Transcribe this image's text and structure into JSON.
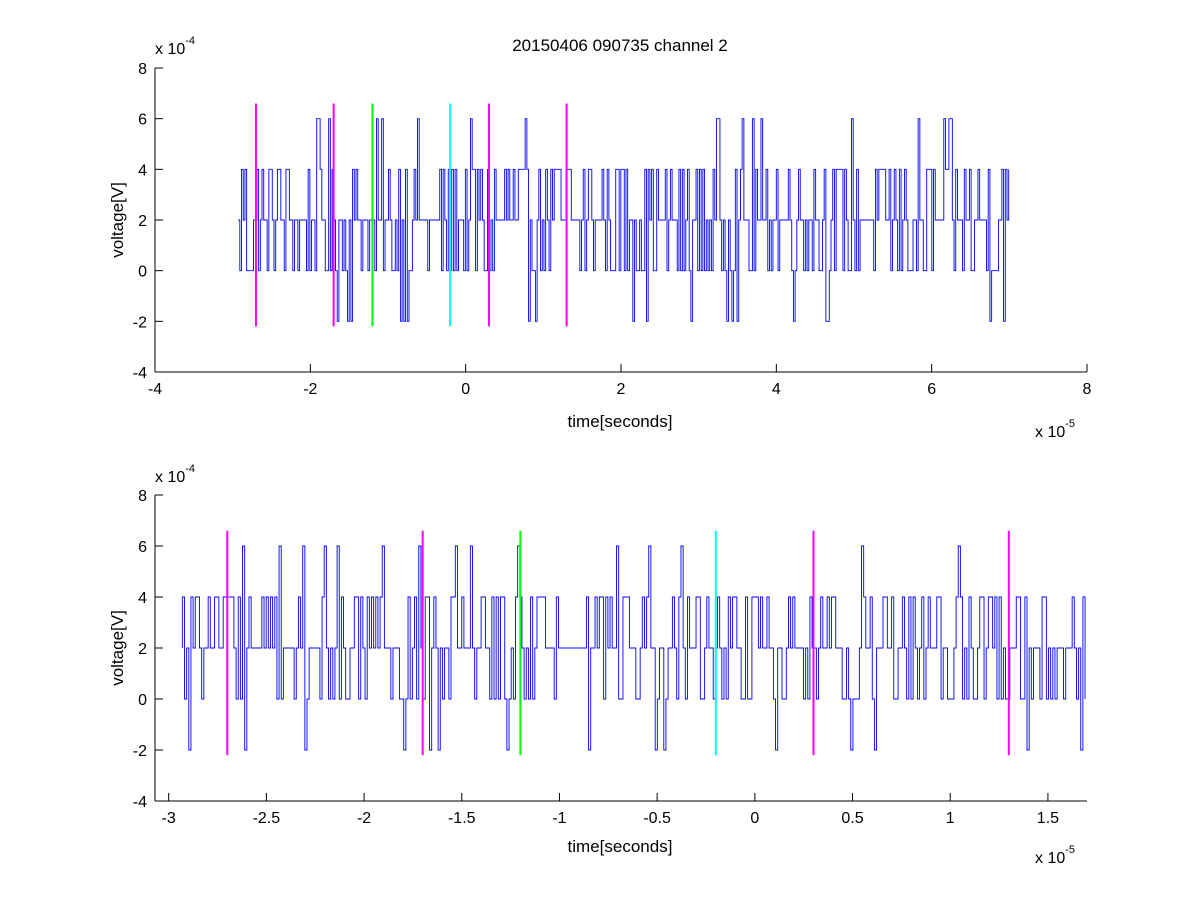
{
  "title": "20150406 090735 channel 2",
  "colors": {
    "signal": "#0000ff",
    "marker_magenta": "#ff00ff",
    "marker_green": "#00ff00",
    "marker_cyan": "#00ffff",
    "axis": "#000000"
  },
  "chart_data": [
    {
      "type": "line",
      "title": "20150406 090735 channel 2",
      "xlabel": "time[seconds]",
      "ylabel": "voltage[V]",
      "x_exponent_label": "x 10",
      "x_exponent": "-5",
      "y_exponent_label": "x 10",
      "y_exponent": "-4",
      "xlim": [
        -4,
        8
      ],
      "ylim": [
        -4,
        8
      ],
      "x_ticks": [
        -4,
        -2,
        0,
        2,
        4,
        6,
        8
      ],
      "x_tick_labels": [
        "-4",
        "-2",
        "0",
        "2",
        "4",
        "6",
        "8"
      ],
      "y_ticks": [
        -4,
        -2,
        0,
        2,
        4,
        6,
        8
      ],
      "y_tick_labels": [
        "-4",
        "-2",
        "0",
        "2",
        "4",
        "6",
        "8"
      ],
      "signal_range_x": [
        -2.93,
        7.0
      ],
      "signal_levels": [
        -2,
        0,
        2,
        4,
        6
      ],
      "markers": [
        {
          "x": -2.7,
          "y0": -2.2,
          "y1": 6.6,
          "color": "magenta"
        },
        {
          "x": -1.7,
          "y0": -2.2,
          "y1": 6.6,
          "color": "magenta"
        },
        {
          "x": -1.2,
          "y0": -2.2,
          "y1": 6.6,
          "color": "green"
        },
        {
          "x": -0.2,
          "y0": -2.2,
          "y1": 6.6,
          "color": "cyan"
        },
        {
          "x": 0.3,
          "y0": -2.2,
          "y1": 6.6,
          "color": "magenta"
        },
        {
          "x": 1.3,
          "y0": -2.2,
          "y1": 6.6,
          "color": "magenta"
        }
      ]
    },
    {
      "type": "line",
      "title": "",
      "xlabel": "time[seconds]",
      "ylabel": "voltage[V]",
      "x_exponent_label": "x 10",
      "x_exponent": "-5",
      "y_exponent_label": "x 10",
      "y_exponent": "-4",
      "xlim": [
        -3.07,
        1.7
      ],
      "ylim": [
        -4,
        8
      ],
      "x_ticks": [
        -3,
        -2.5,
        -2,
        -1.5,
        -1,
        -0.5,
        0,
        0.5,
        1,
        1.5
      ],
      "x_tick_labels": [
        "-3",
        "-2.5",
        "-2",
        "-1.5",
        "-1",
        "-0.5",
        "0",
        "0.5",
        "1",
        "1.5"
      ],
      "y_ticks": [
        -4,
        -2,
        0,
        2,
        4,
        6,
        8
      ],
      "y_tick_labels": [
        "-4",
        "-2",
        "0",
        "2",
        "4",
        "6",
        "8"
      ],
      "signal_range_x": [
        -2.93,
        1.7
      ],
      "signal_levels": [
        -2,
        0,
        2,
        4,
        6
      ],
      "markers": [
        {
          "x": -2.7,
          "y0": -2.2,
          "y1": 6.6,
          "color": "magenta"
        },
        {
          "x": -1.7,
          "y0": -2.2,
          "y1": 6.6,
          "color": "magenta"
        },
        {
          "x": -1.2,
          "y0": -2.2,
          "y1": 6.6,
          "color": "green"
        },
        {
          "x": -0.2,
          "y0": -2.2,
          "y1": 6.6,
          "color": "cyan"
        },
        {
          "x": 0.3,
          "y0": -2.2,
          "y1": 6.6,
          "color": "magenta"
        },
        {
          "x": 1.3,
          "y0": -2.2,
          "y1": 6.6,
          "color": "magenta"
        }
      ]
    }
  ]
}
